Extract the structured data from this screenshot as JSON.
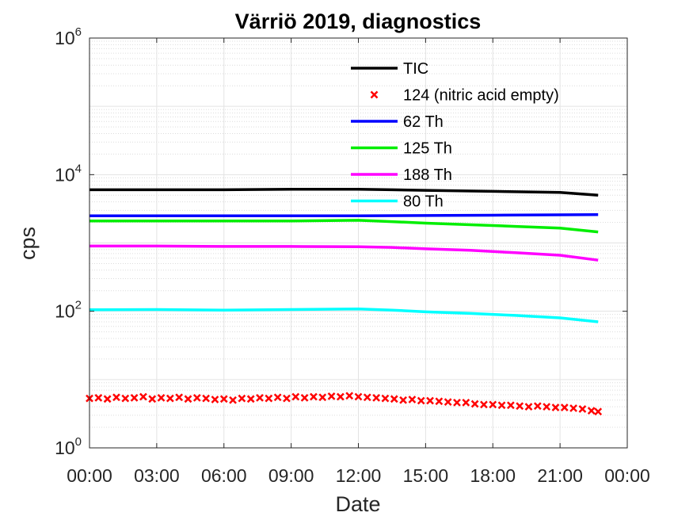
{
  "chart_data": {
    "type": "line",
    "title": "Värriö 2019, diagnostics",
    "xlabel": "Date",
    "ylabel": "cps",
    "yscale": "log",
    "ylim": [
      1,
      1000000
    ],
    "xlim": [
      0,
      24
    ],
    "x_unit": "hours",
    "grid": true,
    "legend_position": "top-center",
    "x_ticks": [
      {
        "value": 0,
        "label": "00:00"
      },
      {
        "value": 3,
        "label": "03:00"
      },
      {
        "value": 6,
        "label": "06:00"
      },
      {
        "value": 9,
        "label": "09:00"
      },
      {
        "value": 12,
        "label": "12:00"
      },
      {
        "value": 15,
        "label": "15:00"
      },
      {
        "value": 18,
        "label": "18:00"
      },
      {
        "value": 21,
        "label": "21:00"
      },
      {
        "value": 24,
        "label": "00:00"
      }
    ],
    "y_ticks": [
      {
        "value": 1,
        "base": "10",
        "exp": "0"
      },
      {
        "value": 100,
        "base": "10",
        "exp": "2"
      },
      {
        "value": 10000,
        "base": "10",
        "exp": "4"
      },
      {
        "value": 1000000,
        "base": "10",
        "exp": "6"
      }
    ],
    "series": [
      {
        "name": "TIC",
        "style": "line",
        "color": "#000000",
        "points": [
          [
            0,
            6000
          ],
          [
            3,
            6000
          ],
          [
            6,
            6000
          ],
          [
            9,
            6100
          ],
          [
            12,
            6100
          ],
          [
            13.5,
            6000
          ],
          [
            15,
            5900
          ],
          [
            18,
            5700
          ],
          [
            21,
            5500
          ],
          [
            22.7,
            5000
          ]
        ]
      },
      {
        "name": "124 (nitric acid empty)",
        "style": "markers",
        "color": "#ff0000",
        "points": [
          [
            0,
            5.3
          ],
          [
            0.4,
            5.4
          ],
          [
            0.8,
            5.2
          ],
          [
            1.2,
            5.5
          ],
          [
            1.6,
            5.3
          ],
          [
            2,
            5.4
          ],
          [
            2.4,
            5.6
          ],
          [
            2.8,
            5.2
          ],
          [
            3.2,
            5.4
          ],
          [
            3.6,
            5.3
          ],
          [
            4,
            5.5
          ],
          [
            4.4,
            5.2
          ],
          [
            4.8,
            5.4
          ],
          [
            5.2,
            5.3
          ],
          [
            5.6,
            5.1
          ],
          [
            6,
            5.2
          ],
          [
            6.4,
            5.0
          ],
          [
            6.8,
            5.3
          ],
          [
            7.2,
            5.2
          ],
          [
            7.6,
            5.4
          ],
          [
            8,
            5.3
          ],
          [
            8.4,
            5.5
          ],
          [
            8.8,
            5.3
          ],
          [
            9.2,
            5.6
          ],
          [
            9.6,
            5.4
          ],
          [
            10,
            5.6
          ],
          [
            10.4,
            5.5
          ],
          [
            10.8,
            5.7
          ],
          [
            11.2,
            5.6
          ],
          [
            11.6,
            5.8
          ],
          [
            12,
            5.6
          ],
          [
            12.4,
            5.5
          ],
          [
            12.8,
            5.4
          ],
          [
            13.2,
            5.3
          ],
          [
            13.6,
            5.2
          ],
          [
            14,
            5.0
          ],
          [
            14.4,
            5.1
          ],
          [
            14.8,
            4.9
          ],
          [
            15.2,
            4.9
          ],
          [
            15.6,
            4.8
          ],
          [
            16,
            4.7
          ],
          [
            16.4,
            4.6
          ],
          [
            16.8,
            4.6
          ],
          [
            17.2,
            4.4
          ],
          [
            17.6,
            4.3
          ],
          [
            18,
            4.3
          ],
          [
            18.4,
            4.2
          ],
          [
            18.8,
            4.2
          ],
          [
            19.2,
            4.1
          ],
          [
            19.6,
            4.0
          ],
          [
            20,
            4.1
          ],
          [
            20.4,
            4.0
          ],
          [
            20.8,
            3.9
          ],
          [
            21.2,
            3.9
          ],
          [
            21.6,
            3.8
          ],
          [
            22,
            3.7
          ],
          [
            22.4,
            3.5
          ],
          [
            22.7,
            3.4
          ]
        ]
      },
      {
        "name": "62 Th",
        "style": "line",
        "color": "#0000ff",
        "points": [
          [
            0,
            2500
          ],
          [
            6,
            2500
          ],
          [
            12,
            2500
          ],
          [
            18,
            2550
          ],
          [
            22.7,
            2600
          ]
        ]
      },
      {
        "name": "125 Th",
        "style": "line",
        "color": "#00ee00",
        "points": [
          [
            0,
            2100
          ],
          [
            3,
            2100
          ],
          [
            6,
            2100
          ],
          [
            9,
            2100
          ],
          [
            12,
            2150
          ],
          [
            13.5,
            2050
          ],
          [
            15,
            1950
          ],
          [
            17,
            1850
          ],
          [
            19,
            1750
          ],
          [
            21,
            1650
          ],
          [
            22.7,
            1450
          ]
        ]
      },
      {
        "name": "188 Th",
        "style": "line",
        "color": "#ff00ff",
        "points": [
          [
            0,
            900
          ],
          [
            3,
            900
          ],
          [
            6,
            890
          ],
          [
            9,
            890
          ],
          [
            12,
            880
          ],
          [
            13.5,
            860
          ],
          [
            15,
            820
          ],
          [
            17,
            780
          ],
          [
            19,
            720
          ],
          [
            21,
            660
          ],
          [
            22.7,
            560
          ]
        ]
      },
      {
        "name": "80 Th",
        "style": "line",
        "color": "#00ffff",
        "points": [
          [
            0,
            105
          ],
          [
            3,
            106
          ],
          [
            6,
            104
          ],
          [
            9,
            106
          ],
          [
            12,
            108
          ],
          [
            13.5,
            104
          ],
          [
            15,
            98
          ],
          [
            17,
            93
          ],
          [
            19,
            87
          ],
          [
            21,
            80
          ],
          [
            22.7,
            70
          ]
        ]
      }
    ]
  }
}
